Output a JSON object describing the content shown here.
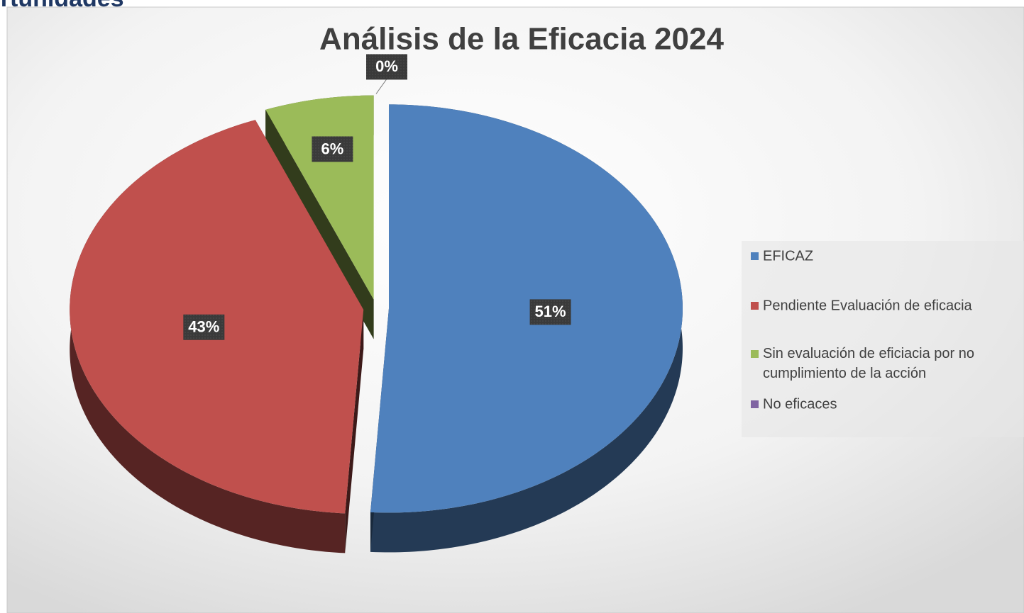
{
  "page_header": "ortunidades",
  "chart_data": {
    "type": "pie",
    "title": "Análisis de la Eficacia 2024",
    "categories": [
      "EFICAZ",
      "Pendiente Evaluación de eficacia",
      "Sin evaluación de eficiacia por no cumplimiento de la acción",
      "No eficaces"
    ],
    "values": [
      51,
      43,
      6,
      0
    ],
    "value_labels": [
      "51%",
      "43%",
      "6%",
      "0%"
    ],
    "colors": [
      "#4f81bd",
      "#c0504d",
      "#9bbb59",
      "#8064a2"
    ],
    "legend": "right"
  }
}
